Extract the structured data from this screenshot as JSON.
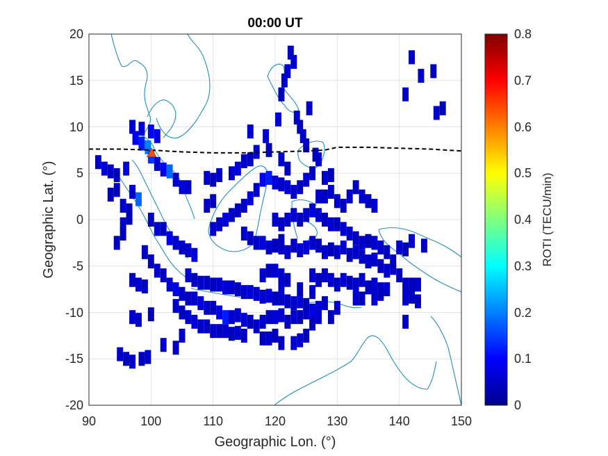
{
  "chart_data": {
    "type": "heatmap",
    "title": "00:00 UT",
    "xlabel": "Geographic Lon. (°)",
    "ylabel": "Geographic Lat. (°)",
    "xlim": [
      90,
      150
    ],
    "ylim": [
      -20,
      20
    ],
    "xticks": [
      "90",
      "100",
      "110",
      "120",
      "130",
      "140",
      "150"
    ],
    "yticks": [
      "20",
      "15",
      "10",
      "5",
      "0",
      "-5",
      "-10",
      "-15",
      "-20"
    ],
    "grid": true,
    "colorbar": {
      "label": "ROTI (TECU/min)",
      "range": [
        0,
        0.8
      ],
      "ticks": [
        "0.8",
        "0.7",
        "0.6",
        "0.5",
        "0.4",
        "0.3",
        "0.2",
        "0.1",
        "0"
      ],
      "colormap": "jet"
    },
    "coastline_color": "#1f8fbf",
    "magnetic_equator": {
      "style": "dashed",
      "color": "#000000",
      "points": [
        [
          90,
          7.6
        ],
        [
          95,
          7.6
        ],
        [
          100,
          7.5
        ],
        [
          105,
          7.3
        ],
        [
          110,
          7.2
        ],
        [
          115,
          7.2
        ],
        [
          120,
          7.3
        ],
        [
          125,
          7.4
        ],
        [
          128,
          7.5
        ],
        [
          130,
          7.8
        ],
        [
          135,
          7.8
        ],
        [
          140,
          7.7
        ],
        [
          145,
          7.6
        ],
        [
          150,
          7.4
        ]
      ]
    },
    "station_marker": {
      "lon": 100.1,
      "lat": 7.2,
      "shape": "triangle",
      "color": "#e8501a"
    },
    "roti_cells": [
      [
        91.5,
        6.2,
        0.06
      ],
      [
        92.5,
        5.5,
        0.07
      ],
      [
        93.5,
        5.2,
        0.06
      ],
      [
        94.5,
        4.8,
        0.05
      ],
      [
        96,
        5.5,
        0.08
      ],
      [
        97,
        3,
        0.06
      ],
      [
        98,
        2.2,
        0.18
      ],
      [
        97.5,
        8.8,
        0.09
      ],
      [
        98.5,
        8.2,
        0.12
      ],
      [
        99.5,
        7.8,
        0.2
      ],
      [
        100,
        6.8,
        0.14
      ],
      [
        101,
        6,
        0.06
      ],
      [
        102,
        5.4,
        0.09
      ],
      [
        103,
        5.2,
        0.18
      ],
      [
        104,
        4.3,
        0.06
      ],
      [
        105,
        3.5,
        0.07
      ],
      [
        106,
        3.5,
        0.06
      ],
      [
        93.5,
        2.7,
        0.05
      ],
      [
        94.5,
        3.2,
        0.05
      ],
      [
        95.5,
        1.5,
        0.06
      ],
      [
        96.5,
        1,
        0.05
      ],
      [
        95.5,
        -0.5,
        0.06
      ],
      [
        96.5,
        0.2,
        0.05
      ],
      [
        100,
        0,
        0.05
      ],
      [
        101,
        -1,
        0.06
      ],
      [
        102,
        -1,
        0.05
      ],
      [
        103,
        -2,
        0.08
      ],
      [
        104,
        -2.5,
        0.06
      ],
      [
        105,
        -3,
        0.05
      ],
      [
        106,
        -3.3,
        0.06
      ],
      [
        107,
        -3.8,
        0.07
      ],
      [
        99,
        -3.5,
        0.05
      ],
      [
        100,
        -4.5,
        0.05
      ],
      [
        101,
        -5.5,
        0.06
      ],
      [
        102,
        -6,
        0.05
      ],
      [
        103,
        -7,
        0.06
      ],
      [
        104,
        -7.5,
        0.08
      ],
      [
        105,
        -8,
        0.06
      ],
      [
        106,
        -8.5,
        0.05
      ],
      [
        107,
        -8.5,
        0.06
      ],
      [
        108,
        -9,
        0.07
      ],
      [
        109,
        -9.5,
        0.06
      ],
      [
        110,
        -9.5,
        0.05
      ],
      [
        111,
        -10,
        0.08
      ],
      [
        112,
        -10.5,
        0.12
      ],
      [
        113,
        -10.5,
        0.06
      ],
      [
        114,
        -10.3,
        0.06
      ],
      [
        115,
        -10.8,
        0.07
      ],
      [
        116,
        -11,
        0.05
      ],
      [
        117,
        -11.5,
        0.06
      ],
      [
        118,
        -11,
        0.06
      ],
      [
        119,
        -10.5,
        0.05
      ],
      [
        120,
        -10.5,
        0.07
      ],
      [
        121,
        -10.3,
        0.06
      ],
      [
        122,
        -11,
        0.05
      ],
      [
        123,
        -10.5,
        0.06
      ],
      [
        124,
        -10.5,
        0.05
      ],
      [
        125,
        -10,
        0.06
      ],
      [
        126,
        -9.8,
        0.08
      ],
      [
        127,
        -9.5,
        0.07
      ],
      [
        104,
        -9.3,
        0.06
      ],
      [
        105,
        -10,
        0.05
      ],
      [
        106,
        -10.5,
        0.06
      ],
      [
        107,
        -11,
        0.07
      ],
      [
        108,
        -11.5,
        0.06
      ],
      [
        109,
        -11.5,
        0.05
      ],
      [
        110,
        -12,
        0.06
      ],
      [
        111,
        -12,
        0.05
      ],
      [
        112,
        -12,
        0.06
      ],
      [
        113,
        -12.3,
        0.05
      ],
      [
        114,
        -12.2,
        0.06
      ],
      [
        115,
        -12.5,
        0.06
      ],
      [
        118,
        -12.8,
        0.05
      ],
      [
        119,
        -12.8,
        0.06
      ],
      [
        120,
        -12.5,
        0.05
      ],
      [
        121,
        -13.3,
        0.05
      ],
      [
        123,
        -13.3,
        0.06
      ],
      [
        106,
        -6,
        0.06
      ],
      [
        107,
        -6.5,
        0.05
      ],
      [
        108,
        -6.8,
        0.06
      ],
      [
        109,
        -6.8,
        0.06
      ],
      [
        110,
        -7,
        0.05
      ],
      [
        111,
        -7,
        0.06
      ],
      [
        112,
        -7.3,
        0.07
      ],
      [
        113,
        -7.3,
        0.06
      ],
      [
        114,
        -7.5,
        0.05
      ],
      [
        115,
        -7.8,
        0.06
      ],
      [
        116,
        -7.8,
        0.07
      ],
      [
        117,
        -8,
        0.06
      ],
      [
        118,
        -8.3,
        0.06
      ],
      [
        119,
        -8.2,
        0.07
      ],
      [
        120,
        -8.5,
        0.05
      ],
      [
        121,
        -8.5,
        0.06
      ],
      [
        122,
        -8.8,
        0.05
      ],
      [
        123,
        -9,
        0.06
      ],
      [
        124,
        -8.8,
        0.07
      ],
      [
        125,
        -9.2,
        0.05
      ],
      [
        110,
        -1,
        0.06
      ],
      [
        111,
        -0.5,
        0.06
      ],
      [
        112,
        0,
        0.07
      ],
      [
        113,
        0.5,
        0.06
      ],
      [
        114,
        1,
        0.05
      ],
      [
        115,
        1.5,
        0.06
      ],
      [
        116,
        2.3,
        0.07
      ],
      [
        117,
        3.2,
        0.06
      ],
      [
        118,
        4.3,
        0.1
      ],
      [
        119,
        4.5,
        0.12
      ],
      [
        120,
        4,
        0.07
      ],
      [
        121,
        3.8,
        0.06
      ],
      [
        122,
        3.5,
        0.07
      ],
      [
        123,
        3,
        0.06
      ],
      [
        124,
        3.5,
        0.05
      ],
      [
        125,
        4.3,
        0.06
      ],
      [
        126,
        5,
        0.05
      ],
      [
        109,
        4.5,
        0.06
      ],
      [
        110,
        4.3,
        0.05
      ],
      [
        111,
        4.8,
        0.06
      ],
      [
        113,
        5,
        0.06
      ],
      [
        114,
        5.5,
        0.07
      ],
      [
        115,
        6.3,
        0.06
      ],
      [
        116,
        6.5,
        0.05
      ],
      [
        110,
        2,
        0.05
      ],
      [
        109,
        1.5,
        0.06
      ],
      [
        115,
        -1.5,
        0.06
      ],
      [
        116,
        -2,
        0.05
      ],
      [
        117,
        -2.5,
        0.06
      ],
      [
        118,
        -2.5,
        0.07
      ],
      [
        119,
        -3,
        0.06
      ],
      [
        120,
        -2.8,
        0.05
      ],
      [
        121,
        -3,
        0.06
      ],
      [
        122,
        -3.5,
        0.06
      ],
      [
        123,
        -2.8,
        0.05
      ],
      [
        124,
        -3.3,
        0.06
      ],
      [
        125,
        -3,
        0.07
      ],
      [
        126,
        -2.5,
        0.06
      ],
      [
        127,
        -2.8,
        0.05
      ],
      [
        128,
        -3.5,
        0.06
      ],
      [
        129,
        -3.2,
        0.05
      ],
      [
        130,
        -3.5,
        0.06
      ],
      [
        131,
        -3,
        0.06
      ],
      [
        132,
        -3.8,
        0.05
      ],
      [
        133,
        -3.5,
        0.06
      ],
      [
        134,
        -4,
        0.05
      ],
      [
        135,
        -4.5,
        0.06
      ],
      [
        136,
        -4.3,
        0.06
      ],
      [
        137,
        -5,
        0.05
      ],
      [
        138,
        -5.5,
        0.06
      ],
      [
        120,
        0,
        0.06
      ],
      [
        121,
        -0.5,
        0.05
      ],
      [
        122,
        0,
        0.06
      ],
      [
        123,
        0.5,
        0.06
      ],
      [
        124,
        0,
        0.05
      ],
      [
        125,
        0.5,
        0.06
      ],
      [
        126,
        1,
        0.07
      ],
      [
        127,
        0.5,
        0.06
      ],
      [
        128,
        0,
        0.05
      ],
      [
        129,
        -0.5,
        0.06
      ],
      [
        130,
        -0.5,
        0.05
      ],
      [
        131,
        -1,
        0.06
      ],
      [
        132,
        -1.5,
        0.06
      ],
      [
        133,
        -2,
        0.05
      ],
      [
        134,
        -2.5,
        0.06
      ],
      [
        135,
        -2.3,
        0.05
      ],
      [
        136,
        -2.5,
        0.06
      ],
      [
        137,
        -3,
        0.06
      ],
      [
        138,
        -3.5,
        0.05
      ],
      [
        127,
        2.5,
        0.06
      ],
      [
        128,
        2.5,
        0.05
      ],
      [
        129,
        3,
        0.06
      ],
      [
        130,
        2,
        0.06
      ],
      [
        131,
        1.5,
        0.05
      ],
      [
        132,
        2.5,
        0.06
      ],
      [
        133,
        3.5,
        0.05
      ],
      [
        134,
        2.5,
        0.06
      ],
      [
        135,
        2,
        0.05
      ],
      [
        136,
        1.5,
        0.06
      ],
      [
        128,
        4.5,
        0.06
      ],
      [
        129,
        4.8,
        0.05
      ],
      [
        118,
        -6,
        0.06
      ],
      [
        119,
        -5.5,
        0.05
      ],
      [
        120,
        -5.5,
        0.06
      ],
      [
        121,
        -6,
        0.06
      ],
      [
        122,
        -6.5,
        0.05
      ],
      [
        126,
        -6,
        0.06
      ],
      [
        127,
        -6.5,
        0.05
      ],
      [
        128,
        -6,
        0.06
      ],
      [
        129,
        -6.5,
        0.06
      ],
      [
        130,
        -7,
        0.05
      ],
      [
        131,
        -6.5,
        0.06
      ],
      [
        132,
        -6.8,
        0.05
      ],
      [
        133,
        -7,
        0.06
      ],
      [
        134,
        -6.5,
        0.06
      ],
      [
        135,
        -7.3,
        0.05
      ],
      [
        136,
        -7,
        0.06
      ],
      [
        137,
        -7.5,
        0.05
      ],
      [
        128,
        -9,
        0.06
      ],
      [
        129,
        -10.5,
        0.05
      ],
      [
        130,
        -9.5,
        0.06
      ],
      [
        133,
        -8.5,
        0.06
      ],
      [
        134,
        -8.5,
        0.05
      ],
      [
        136,
        -8.5,
        0.06
      ],
      [
        137,
        -8,
        0.05
      ],
      [
        138,
        -7.5,
        0.06
      ],
      [
        139,
        -5.2,
        0.06
      ],
      [
        140,
        -6,
        0.05
      ],
      [
        141,
        -7,
        0.06
      ],
      [
        142,
        -7,
        0.05
      ],
      [
        143,
        -7,
        0.06
      ],
      [
        140,
        -3,
        0.06
      ],
      [
        141,
        -3.2,
        0.05
      ],
      [
        142,
        -2.3,
        0.06
      ],
      [
        144,
        -2.8,
        0.05
      ],
      [
        141,
        -8.5,
        0.06
      ],
      [
        142,
        -8.3,
        0.05
      ],
      [
        141,
        -11,
        0.06
      ],
      [
        143,
        -8.8,
        0.05
      ],
      [
        126,
        -7.8,
        0.06
      ],
      [
        126,
        -11.2,
        0.05
      ],
      [
        127,
        -10.5,
        0.06
      ],
      [
        121,
        -2.3,
        0.05
      ],
      [
        121,
        -7,
        0.06
      ],
      [
        124,
        -7.5,
        0.05
      ],
      [
        124,
        -13,
        0.06
      ],
      [
        125,
        -12.5,
        0.05
      ],
      [
        97,
        -6.5,
        0.05
      ],
      [
        98,
        -7,
        0.06
      ],
      [
        99,
        -7.2,
        0.05
      ],
      [
        98,
        -10.8,
        0.06
      ],
      [
        95,
        -14.5,
        0.06
      ],
      [
        96,
        -15,
        0.05
      ],
      [
        97,
        -15.3,
        0.06
      ],
      [
        98.5,
        -15,
        0.05
      ],
      [
        99.5,
        -14.8,
        0.06
      ],
      [
        97,
        -10.5,
        0.06
      ],
      [
        100,
        -10.2,
        0.05
      ],
      [
        102,
        -13.5,
        0.06
      ],
      [
        104,
        -13.8,
        0.05
      ],
      [
        105,
        -12.5,
        0.06
      ],
      [
        94.5,
        -2.5,
        0.05
      ],
      [
        95.5,
        -1.5,
        0.05
      ],
      [
        97,
        10,
        0.06
      ],
      [
        98.5,
        9.8,
        0.07
      ],
      [
        100,
        9.5,
        0.1
      ],
      [
        101,
        9,
        0.08
      ],
      [
        116,
        9.5,
        0.06
      ],
      [
        118.5,
        9,
        0.06
      ],
      [
        117,
        7.3,
        0.07
      ],
      [
        119,
        7.5,
        0.05
      ],
      [
        121,
        6.5,
        0.06
      ],
      [
        122,
        5.5,
        0.05
      ],
      [
        120.5,
        10.8,
        0.06
      ],
      [
        121,
        13.5,
        0.05
      ],
      [
        121.5,
        15,
        0.06
      ],
      [
        122,
        16,
        0.06
      ],
      [
        122.5,
        18,
        0.05
      ],
      [
        123,
        17,
        0.06
      ],
      [
        123.5,
        11,
        0.06
      ],
      [
        124,
        10,
        0.05
      ],
      [
        124.5,
        9,
        0.06
      ],
      [
        125,
        8,
        0.05
      ],
      [
        125.5,
        12,
        0.06
      ],
      [
        127,
        6.5,
        0.06
      ],
      [
        126.5,
        7,
        0.05
      ],
      [
        142,
        17.5,
        0.05
      ],
      [
        143.5,
        15.5,
        0.06
      ],
      [
        145.5,
        16,
        0.05
      ],
      [
        146,
        11.5,
        0.06
      ],
      [
        147,
        12,
        0.05
      ],
      [
        141,
        13.5,
        0.06
      ],
      [
        139,
        -4.5,
        0.05
      ]
    ]
  }
}
